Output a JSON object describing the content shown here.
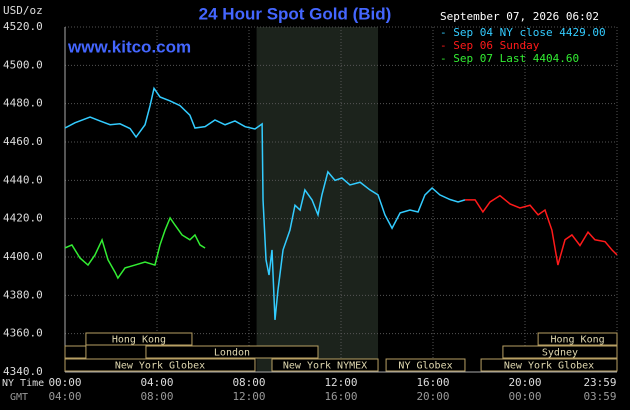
{
  "chart_data": {
    "type": "line",
    "title": "24 Hour Spot Gold (Bid)",
    "y_axis_label": "USD/oz",
    "watermark": "www.kitco.com",
    "timestamp": "September 07, 2026 06:02",
    "xlim": [
      0,
      24
    ],
    "xticks": [
      {
        "value": 0,
        "label": "00:00"
      },
      {
        "value": 4,
        "label": "04:00"
      },
      {
        "value": 8,
        "label": "08:00"
      },
      {
        "value": 12,
        "label": "12:00"
      },
      {
        "value": 16,
        "label": "16:00"
      },
      {
        "value": 20,
        "label": "20:00"
      },
      {
        "value": 24,
        "label": "23:59"
      }
    ],
    "x_row_label": "NY Time",
    "x2_row_label": "GMT",
    "x2ticks": [
      {
        "value": 0,
        "label": "04:00"
      },
      {
        "value": 4,
        "label": "08:00"
      },
      {
        "value": 8,
        "label": "12:00"
      },
      {
        "value": 12,
        "label": "16:00"
      },
      {
        "value": 16,
        "label": "20:00"
      },
      {
        "value": 20,
        "label": "00:00"
      },
      {
        "value": 24,
        "label": "03:59"
      }
    ],
    "ylim": [
      4340,
      4520
    ],
    "yticks": [
      {
        "value": 4520,
        "label": "4520.0"
      },
      {
        "value": 4500,
        "label": "4500.0"
      },
      {
        "value": 4480,
        "label": "4480.0"
      },
      {
        "value": 4460,
        "label": "4460.0"
      },
      {
        "value": 4440,
        "label": "4440.0"
      },
      {
        "value": 4420,
        "label": "4420.0"
      },
      {
        "value": 4400,
        "label": "4400.0"
      },
      {
        "value": 4380,
        "label": "4380.0"
      },
      {
        "value": 4360,
        "label": "4360.0"
      },
      {
        "value": 4340,
        "label": "4340.0"
      }
    ],
    "grid": true,
    "shaded_region": [
      8.33,
      13.61
    ],
    "series": [
      {
        "name": "- Sep 04 NY close 4429.00",
        "color": "#33ccff",
        "x": [
          0,
          0.43,
          1.09,
          1.52,
          1.96,
          2.39,
          2.83,
          3.09,
          3.48,
          3.7,
          3.87,
          4.13,
          4.57,
          5,
          5.43,
          5.65,
          6.09,
          6.52,
          6.96,
          7.39,
          7.83,
          8.26,
          8.57,
          8.61,
          8.74,
          8.87,
          9,
          9.13,
          9.26,
          9.48,
          9.78,
          10,
          10.22,
          10.43,
          10.74,
          11,
          11.17,
          11.43,
          11.74,
          12.04,
          12.39,
          12.83,
          13.26,
          13.61,
          13.91,
          14.22,
          14.57,
          15,
          15.35,
          15.65,
          15.96,
          16.3,
          16.74,
          17.09,
          17.39
        ],
        "values": [
          4467.3,
          4470,
          4473,
          4471,
          4469,
          4469.5,
          4467,
          4462.6,
          4469,
          4479,
          4488,
          4483.5,
          4481.4,
          4479,
          4474,
          4467.3,
          4468,
          4471.5,
          4469,
          4471,
          4468,
          4466.8,
          4469.4,
          4429.8,
          4398.5,
          4390.6,
          4403.7,
          4367.2,
          4382.8,
          4403.7,
          4414,
          4427,
          4424.5,
          4435,
          4429.8,
          4422,
          4432.4,
          4444.4,
          4440,
          4441.2,
          4437.6,
          4439,
          4435,
          4432.4,
          4422,
          4415,
          4423,
          4424.5,
          4423.5,
          4432.4,
          4436,
          4432.4,
          4430,
          4428.7,
          4429.8
        ]
      },
      {
        "name": "- Sep 06 Sunday",
        "color": "#ff1a1a",
        "x": [
          17.39,
          17.83,
          18.17,
          18.48,
          18.91,
          19.35,
          19.78,
          20.22,
          20.57,
          20.87,
          21.17,
          21.43,
          21.74,
          22.04,
          22.39,
          22.74,
          23.04,
          23.48,
          23.78,
          24
        ],
        "values": [
          4429.8,
          4429.8,
          4423.5,
          4428.7,
          4432,
          4427.7,
          4425.6,
          4427,
          4422,
          4424.5,
          4414,
          4395.8,
          4409,
          4411.5,
          4406,
          4413,
          4409,
          4408,
          4403.7,
          4401.1
        ]
      },
      {
        "name": "- Sep 07 Last 4404.60",
        "color": "#33ee33",
        "x": [
          0,
          0.3,
          0.65,
          1,
          1.3,
          1.61,
          1.87,
          2.17,
          2.3,
          2.61,
          3.04,
          3.48,
          3.91,
          4.13,
          4.35,
          4.57,
          4.78,
          5.09,
          5.43,
          5.65,
          5.87,
          6.09
        ],
        "values": [
          4404.7,
          4406.3,
          4399.5,
          4395.8,
          4401,
          4408.9,
          4398.5,
          4392.2,
          4389,
          4394.3,
          4395.8,
          4397.4,
          4395.8,
          4406.3,
          4414,
          4420.4,
          4416.7,
          4411.5,
          4409,
          4411.5,
          4406.3,
          4404.7
        ]
      }
    ],
    "session_rows": [
      [
        {
          "label": "Hong Kong",
          "start": 0.91,
          "end": 5.52
        },
        {
          "label": "Hong Kong",
          "start": 20.57,
          "end": 24
        }
      ],
      [
        {
          "label": null,
          "start": 0,
          "end": 0.91
        },
        {
          "label": "London",
          "start": 3.52,
          "end": 11
        },
        {
          "label": "Sydney",
          "start": 19.04,
          "end": 24
        }
      ],
      [
        {
          "label": "New York Globex",
          "start": 0,
          "end": 8.26
        },
        {
          "label": "New York NYMEX",
          "start": 9,
          "end": 13.61
        },
        {
          "label": "NY Globex",
          "start": 13.96,
          "end": 17.39
        },
        {
          "label": "New York Globex",
          "start": 18.09,
          "end": 24
        }
      ]
    ]
  }
}
